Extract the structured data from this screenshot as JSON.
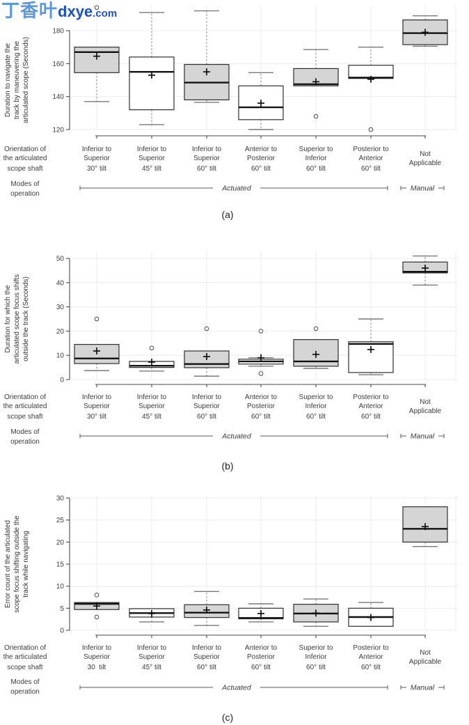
{
  "watermark": {
    "cjk": "丁香叶",
    "site": "dxye",
    "tld": ".com",
    "color_cjk": "#5a98da",
    "color_latin": "#1a50cb"
  },
  "left_labels": {
    "orientation": [
      "Orientation of",
      "the articulated",
      "scope shaft"
    ],
    "modes": [
      "Modes of",
      "operation"
    ]
  },
  "brackets": {
    "actuated": "Actuated",
    "manual": "Manual"
  },
  "colors": {
    "box_gray": "#d5d5d5",
    "box_white": "#ffffff",
    "box_border": "#2e2e2e",
    "median": "#111111",
    "axis": "#4a4a4a",
    "grid": "#ececec",
    "whisker": "#6e6e6e"
  },
  "chart_data": [
    {
      "id": "a",
      "type": "box",
      "caption": "(a)",
      "ylabel_lines": [
        "Duration to navigate the",
        "track by maneuvering the",
        "articulated scope (Seconds)"
      ],
      "ylim": [
        120,
        180
      ],
      "yticks": [
        120,
        140,
        160,
        180
      ],
      "grid": true,
      "categories": [
        {
          "line1": "Inferior to",
          "line2": "Superior",
          "tilt": "30° tilt"
        },
        {
          "line1": "Inferior to",
          "line2": "Superior",
          "tilt": "45° tilt"
        },
        {
          "line1": "Inferior to",
          "line2": "Superior",
          "tilt": "60° tilt"
        },
        {
          "line1": "Anterior to",
          "line2": "Posterior",
          "tilt": "60° tilt"
        },
        {
          "line1": "Superior to",
          "line2": "Inferior",
          "tilt": "60° tilt"
        },
        {
          "line1": "Posterior to",
          "line2": "Anterior",
          "tilt": "60° tilt"
        },
        {
          "line1": "Not",
          "line2": "Applicable",
          "tilt": ""
        }
      ],
      "boxes": [
        {
          "fill": "gray",
          "whisker_low": 137,
          "q1": 154.5,
          "median": 167,
          "q3": 170,
          "whisker_high": null,
          "mean": 164.5,
          "outliers": [
            194
          ]
        },
        {
          "fill": "white",
          "whisker_low": 123,
          "q1": 132,
          "median": 155,
          "q3": 164,
          "whisker_high": 191,
          "mean": 153,
          "outliers": []
        },
        {
          "fill": "gray",
          "whisker_low": 136.5,
          "q1": 138,
          "median": 148.5,
          "q3": 159.5,
          "whisker_high": 192,
          "mean": 155,
          "outliers": []
        },
        {
          "fill": "white",
          "whisker_low": 120,
          "q1": 126,
          "median": 133.5,
          "q3": 146.5,
          "whisker_high": 154.5,
          "mean": 136,
          "outliers": []
        },
        {
          "fill": "gray",
          "whisker_low": null,
          "q1": 146.5,
          "median": 147.5,
          "q3": 157,
          "whisker_high": 168.5,
          "mean": 149,
          "outliers": [
            128
          ]
        },
        {
          "fill": "white",
          "whisker_low": null,
          "q1": 151,
          "median": 151.5,
          "q3": 159,
          "whisker_high": 170,
          "mean": 150.5,
          "outliers": [
            120
          ]
        },
        {
          "fill": "gray",
          "whisker_low": 170.5,
          "q1": 171.5,
          "median": 178.5,
          "q3": 186.5,
          "whisker_high": 189,
          "mean": 179,
          "outliers": []
        }
      ]
    },
    {
      "id": "b",
      "type": "box",
      "caption": "(b)",
      "ylabel_lines": [
        "Duration for which the",
        "articulated scope focus shifts",
        "outside the track (Seconds)"
      ],
      "ylim": [
        0,
        50
      ],
      "yticks": [
        0,
        10,
        20,
        30,
        40,
        50
      ],
      "grid": true,
      "categories": [
        {
          "line1": "Inferior to",
          "line2": "Superior",
          "tilt": "30° tilt"
        },
        {
          "line1": "Inferior to",
          "line2": "Superior",
          "tilt": "45° tilt"
        },
        {
          "line1": "Inferior to",
          "line2": "Superior",
          "tilt": "60° tilt"
        },
        {
          "line1": "Anterior to",
          "line2": "Posterior",
          "tilt": "60° tilt"
        },
        {
          "line1": "Superior to",
          "line2": "Inferior",
          "tilt": "60° tilt"
        },
        {
          "line1": "Posterior to",
          "line2": "Anterior",
          "tilt": "60° tilt"
        },
        {
          "line1": "Not",
          "line2": "Applicable",
          "tilt": ""
        }
      ],
      "boxes": [
        {
          "fill": "gray",
          "whisker_low": 3.7,
          "q1": 6.6,
          "median": 8.7,
          "q3": 14.5,
          "whisker_high": null,
          "mean": 11.8,
          "outliers": [
            25
          ]
        },
        {
          "fill": "white",
          "whisker_low": 3.5,
          "q1": 5,
          "median": 5.7,
          "q3": 7.5,
          "whisker_high": null,
          "mean": 7.2,
          "outliers": [
            13
          ]
        },
        {
          "fill": "gray",
          "whisker_low": 1.4,
          "q1": 4.9,
          "median": 6.4,
          "q3": 11.8,
          "whisker_high": null,
          "mean": 9.5,
          "outliers": [
            21
          ]
        },
        {
          "fill": "white",
          "whisker_low": 5.5,
          "q1": 6.4,
          "median": 7.5,
          "q3": 8.4,
          "whisker_high": 9,
          "mean": 9,
          "outliers": [
            20,
            2.5
          ]
        },
        {
          "fill": "gray",
          "whisker_low": 4.6,
          "q1": 5.5,
          "median": 7.5,
          "q3": 16.5,
          "whisker_high": null,
          "mean": 10.4,
          "outliers": [
            21
          ]
        },
        {
          "fill": "white",
          "whisker_low": 2,
          "q1": 2.9,
          "median": 14.7,
          "q3": 15.6,
          "whisker_high": 25,
          "mean": 12.4,
          "outliers": []
        },
        {
          "fill": "gray",
          "whisker_low": 39,
          "q1": 44,
          "median": 44.5,
          "q3": 48.5,
          "whisker_high": 51,
          "mean": 46,
          "outliers": []
        }
      ]
    },
    {
      "id": "c",
      "type": "box",
      "caption": "(c)",
      "ylabel_lines": [
        "Error count of the articulated",
        "scope focus shifting outside the",
        "track while navigating"
      ],
      "ylim": [
        0,
        30
      ],
      "yticks": [
        0,
        5,
        10,
        15,
        20,
        25,
        30
      ],
      "grid": true,
      "categories": [
        {
          "line1": "Inferior to",
          "line2": "Superior",
          "tilt": "30  tilt"
        },
        {
          "line1": "Inferior to",
          "line2": "Superior",
          "tilt": "45° tilt"
        },
        {
          "line1": "Inferior to",
          "line2": "Superior",
          "tilt": "60° tilt"
        },
        {
          "line1": "Anterior to",
          "line2": "Posterior",
          "tilt": "60° tilt"
        },
        {
          "line1": "Superior to",
          "line2": "Inferior",
          "tilt": "60° tilt"
        },
        {
          "line1": "Posterior to",
          "line2": "Anterior",
          "tilt": "60° tilt"
        },
        {
          "line1": "Not",
          "line2": "Applicable",
          "tilt": ""
        }
      ],
      "boxes": [
        {
          "fill": "gray",
          "whisker_low": null,
          "q1": 4.7,
          "median": 6,
          "q3": 6.3,
          "whisker_high": null,
          "mean": 5.5,
          "outliers": [
            8,
            3
          ]
        },
        {
          "fill": "white",
          "whisker_low": 1.9,
          "q1": 3,
          "median": 3.9,
          "q3": 4.9,
          "whisker_high": null,
          "mean": 3.8,
          "outliers": []
        },
        {
          "fill": "gray",
          "whisker_low": 1.1,
          "q1": 2.9,
          "median": 4,
          "q3": 5.8,
          "whisker_high": 8.8,
          "mean": 4.6,
          "outliers": []
        },
        {
          "fill": "white",
          "whisker_low": 1.9,
          "q1": 2.6,
          "median": 2.8,
          "q3": 5,
          "whisker_high": 6,
          "mean": 3.8,
          "outliers": []
        },
        {
          "fill": "gray",
          "whisker_low": 0.9,
          "q1": 1.9,
          "median": 3.8,
          "q3": 5.9,
          "whisker_high": 7.1,
          "mean": 3.9,
          "outliers": []
        },
        {
          "fill": "white",
          "whisker_low": null,
          "q1": 0.9,
          "median": 3,
          "q3": 5,
          "whisker_high": 6.3,
          "mean": 2.9,
          "outliers": []
        },
        {
          "fill": "gray",
          "whisker_low": 19,
          "q1": 20,
          "median": 23,
          "q3": 28,
          "whisker_high": null,
          "mean": 23.5,
          "outliers": []
        }
      ]
    }
  ]
}
